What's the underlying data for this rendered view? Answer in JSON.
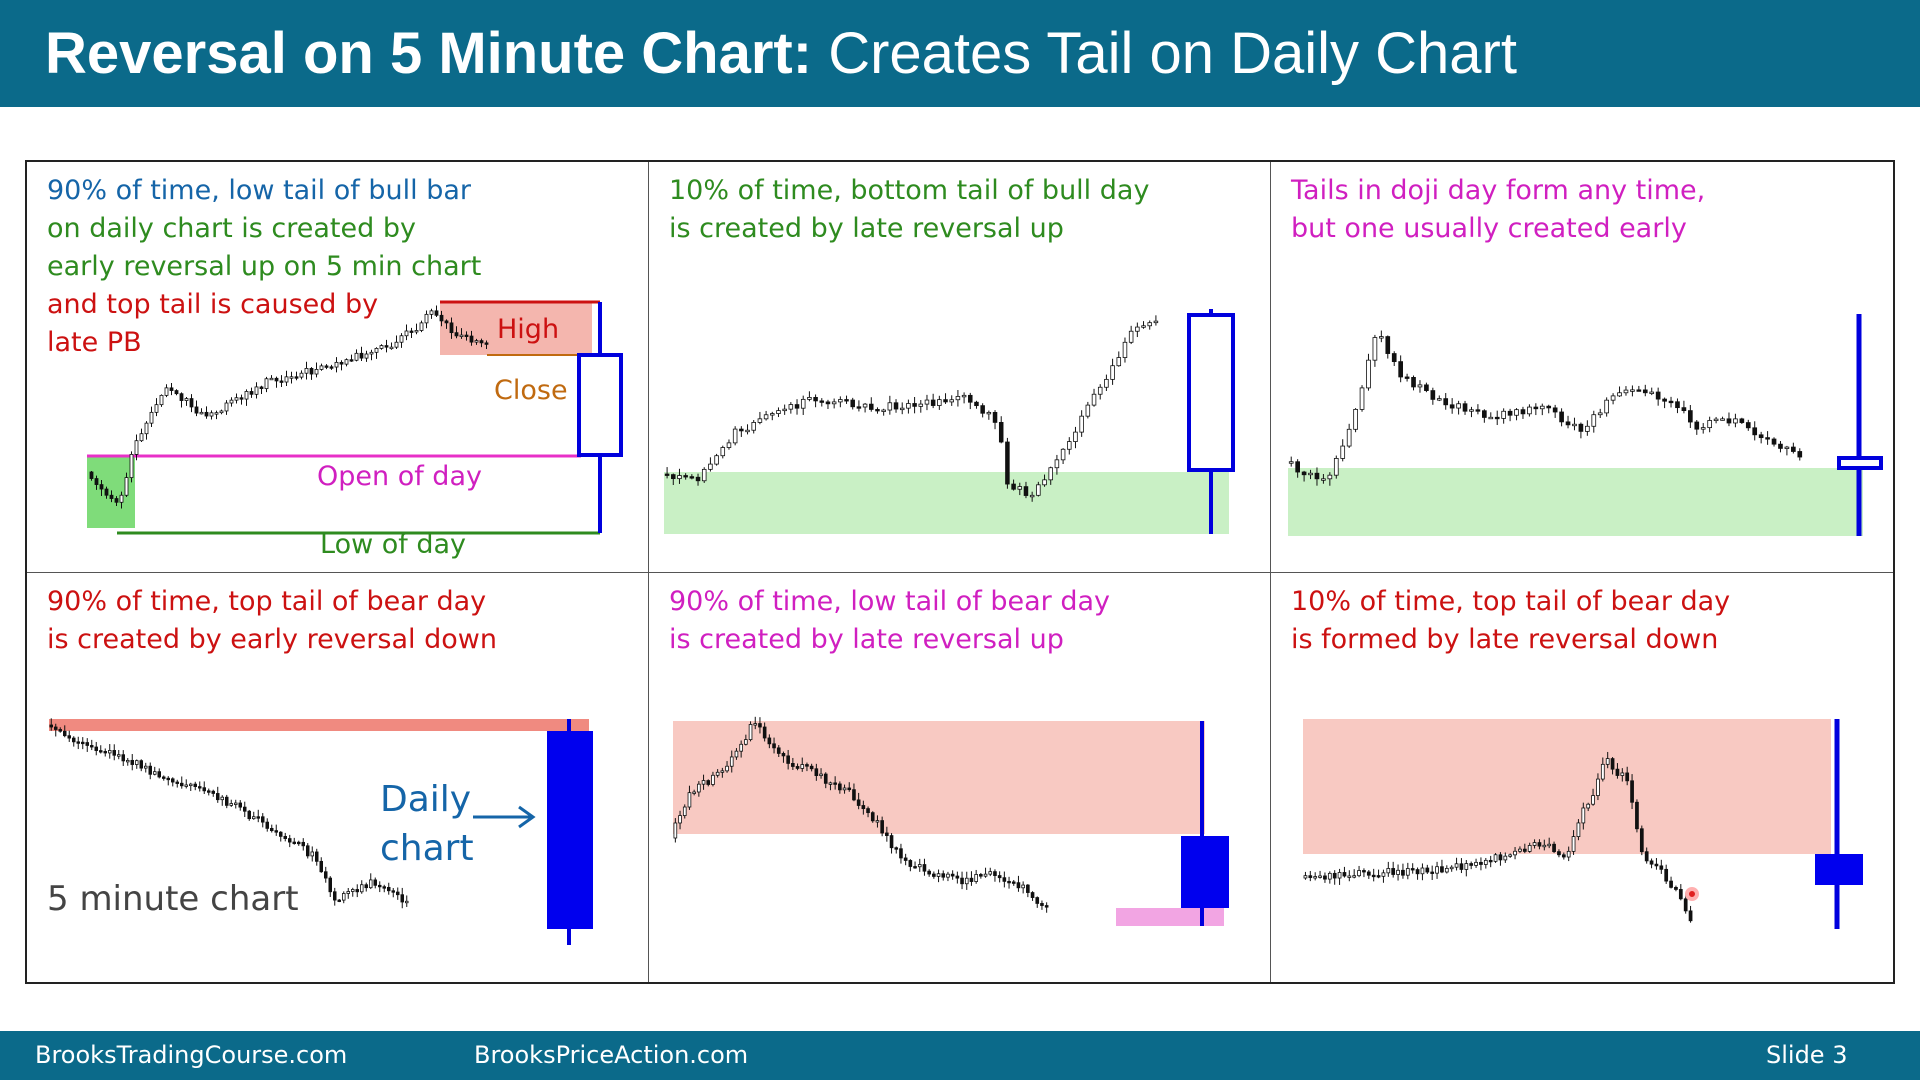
{
  "title": {
    "bold": "Reversal on 5 Minute Chart:",
    "rest": "Creates Tail on Daily Chart"
  },
  "footer": {
    "left": "BrooksTradingCourse.com",
    "middle": "BrooksPriceAction.com",
    "slide": "Slide  3"
  },
  "colors": {
    "header": "#0b6a8a",
    "blue": "#1565a8",
    "green": "#2e8b1f",
    "red": "#cc1111",
    "magenta": "#d01fc0",
    "candle": "#0000dd",
    "range_red": "#f4b6ae",
    "range_green": "#c9f0c5",
    "pink": "#f2a5e3"
  },
  "panels": [
    {
      "lines": [
        {
          "text": "90% of time, low tail of bull bar",
          "color": "#1565a8"
        },
        {
          "text": "on daily chart is created by",
          "color": "#2e8b1f"
        },
        {
          "text": "early reversal up on 5 min chart",
          "color": "#2e8b1f"
        },
        {
          "text": "and top tail is caused by",
          "color": "#cc1111"
        },
        {
          "text": "late PB",
          "color": "#cc1111"
        }
      ],
      "labels": {
        "high": "High",
        "close": "Close",
        "open": "Open of day",
        "low": "Low of day"
      }
    },
    {
      "lines": [
        {
          "text": "10% of time, bottom tail of bull day",
          "color": "#2e8b1f"
        },
        {
          "text": "is created by late reversal up",
          "color": "#2e8b1f"
        }
      ]
    },
    {
      "lines": [
        {
          "text": "Tails in doji day form any time,",
          "color": "#d01fc0"
        },
        {
          "text": "but one usually created early",
          "color": "#d01fc0"
        }
      ]
    },
    {
      "lines": [
        {
          "text": "90% of time, top tail of bear day",
          "color": "#cc1111"
        },
        {
          "text": "is created by early reversal down",
          "color": "#cc1111"
        }
      ],
      "labels": {
        "daily1": "Daily",
        "daily2": "chart",
        "five_min": "5 minute chart"
      }
    },
    {
      "lines": [
        {
          "text": "90% of time, low tail of bear day",
          "color": "#d01fc0"
        },
        {
          "text": "is created by late reversal up",
          "color": "#d01fc0"
        }
      ]
    },
    {
      "lines": [
        {
          "text": "10% of time, top tail of bear day",
          "color": "#cc1111"
        },
        {
          "text": "is formed by late reversal down",
          "color": "#cc1111"
        }
      ]
    }
  ]
}
